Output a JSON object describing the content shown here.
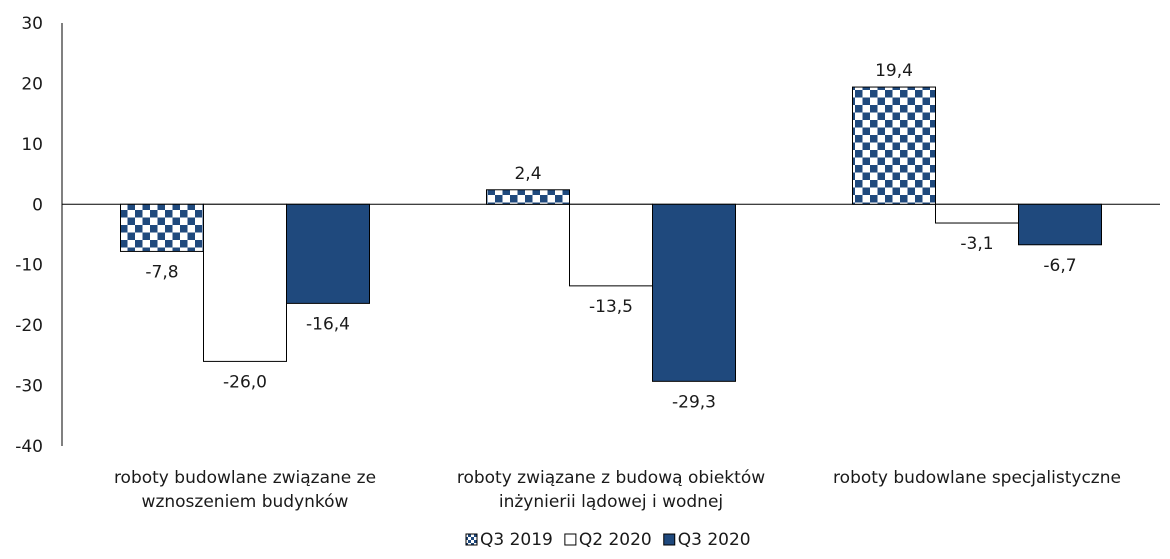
{
  "chart_data": {
    "type": "bar",
    "title": "",
    "xlabel": "",
    "ylabel": "",
    "ylim": [
      -40,
      30
    ],
    "yticks": [
      -40,
      -30,
      -20,
      -10,
      0,
      10,
      20,
      30
    ],
    "grid": false,
    "legend_position": "bottom",
    "categories": [
      [
        "roboty budowlane związane ze",
        "wznoszeniem budynków"
      ],
      [
        "roboty związane z budową obiektów",
        "inżynierii lądowej i wodnej"
      ],
      [
        "roboty budowlane specjalistyczne"
      ]
    ],
    "series": [
      {
        "name": "Q3 2019",
        "values": [
          -7.8,
          2.4,
          19.4
        ],
        "labels": [
          "-7,8",
          "2,4",
          "19,4"
        ],
        "fill": "checker",
        "color": "#1f497d"
      },
      {
        "name": "Q2 2020",
        "values": [
          -26.0,
          -13.5,
          -3.1
        ],
        "labels": [
          "-26,0",
          "-13,5",
          "-3,1"
        ],
        "fill": "white",
        "color": "#ffffff"
      },
      {
        "name": "Q3 2020",
        "values": [
          -16.4,
          -29.3,
          -6.7
        ],
        "labels": [
          "-16,4",
          "-29,3",
          "-6,7"
        ],
        "fill": "solid",
        "color": "#1f497d"
      }
    ]
  },
  "colors": {
    "navy": "#1f497d",
    "axis": "#000000"
  }
}
